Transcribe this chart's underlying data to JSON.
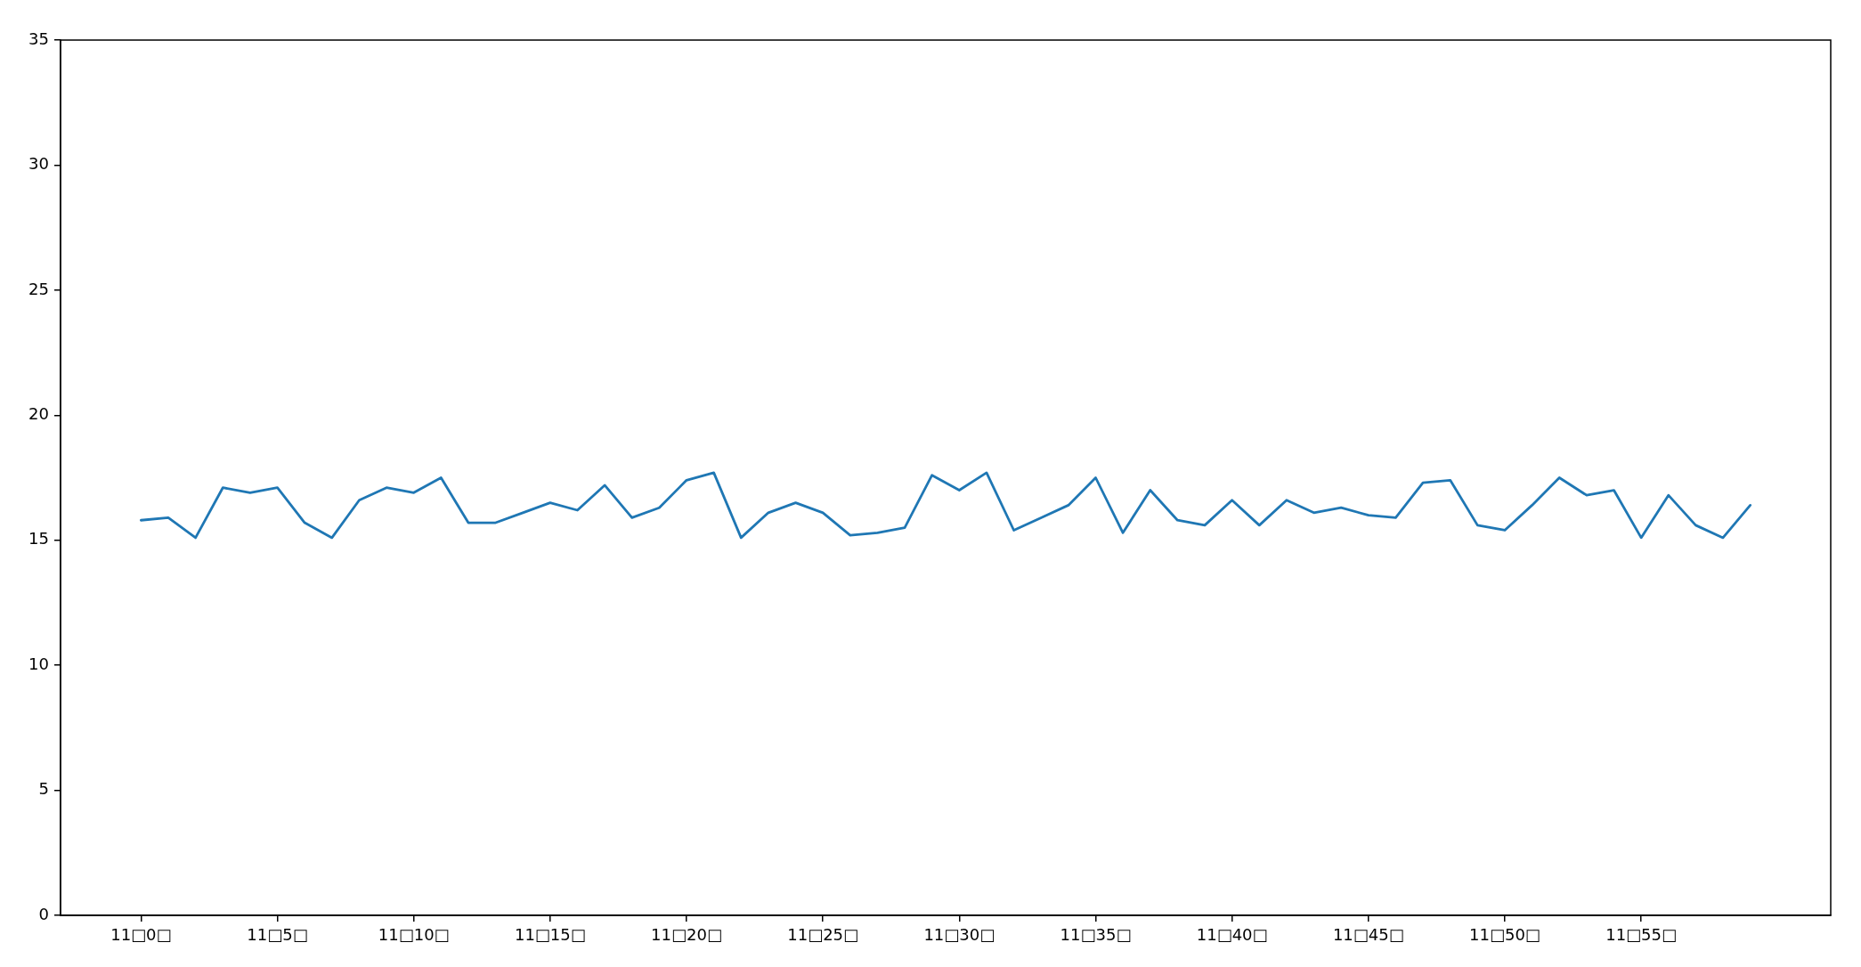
{
  "chart_data": {
    "type": "line",
    "categories": [
      "11□0□",
      null,
      null,
      null,
      null,
      "11□5□",
      null,
      null,
      null,
      null,
      "11□10□",
      null,
      null,
      null,
      null,
      "11□15□",
      null,
      null,
      null,
      null,
      "11□20□",
      null,
      null,
      null,
      null,
      "11□25□",
      null,
      null,
      null,
      null,
      "11□30□",
      null,
      null,
      null,
      null,
      "11□35□",
      null,
      null,
      null,
      null,
      "11□40□",
      null,
      null,
      null,
      null,
      "11□45□",
      null,
      null,
      null,
      null,
      "11□50□",
      null,
      null,
      null,
      null,
      "11□55□",
      null,
      null,
      null,
      null
    ],
    "series": [
      {
        "color": "#1f77b4",
        "values": [
          15.8,
          15.9,
          15.1,
          17.1,
          16.9,
          17.1,
          15.7,
          15.1,
          16.6,
          17.1,
          16.9,
          17.5,
          15.7,
          15.7,
          16.1,
          16.5,
          16.2,
          17.2,
          15.9,
          16.3,
          17.4,
          17.7,
          15.1,
          16.1,
          16.5,
          16.1,
          15.2,
          15.3,
          15.5,
          17.6,
          17.0,
          17.7,
          15.4,
          15.9,
          16.4,
          17.5,
          15.3,
          17.0,
          15.8,
          15.6,
          16.6,
          15.6,
          16.6,
          16.1,
          16.3,
          16.0,
          15.9,
          17.3,
          17.4,
          15.6,
          15.4,
          16.4,
          17.5,
          16.8,
          17.0,
          15.1,
          16.8,
          15.6,
          15.1,
          16.4
        ]
      }
    ],
    "ylim": [
      0,
      35
    ],
    "yticks": [
      0,
      5,
      10,
      15,
      20,
      25,
      30,
      35
    ]
  }
}
